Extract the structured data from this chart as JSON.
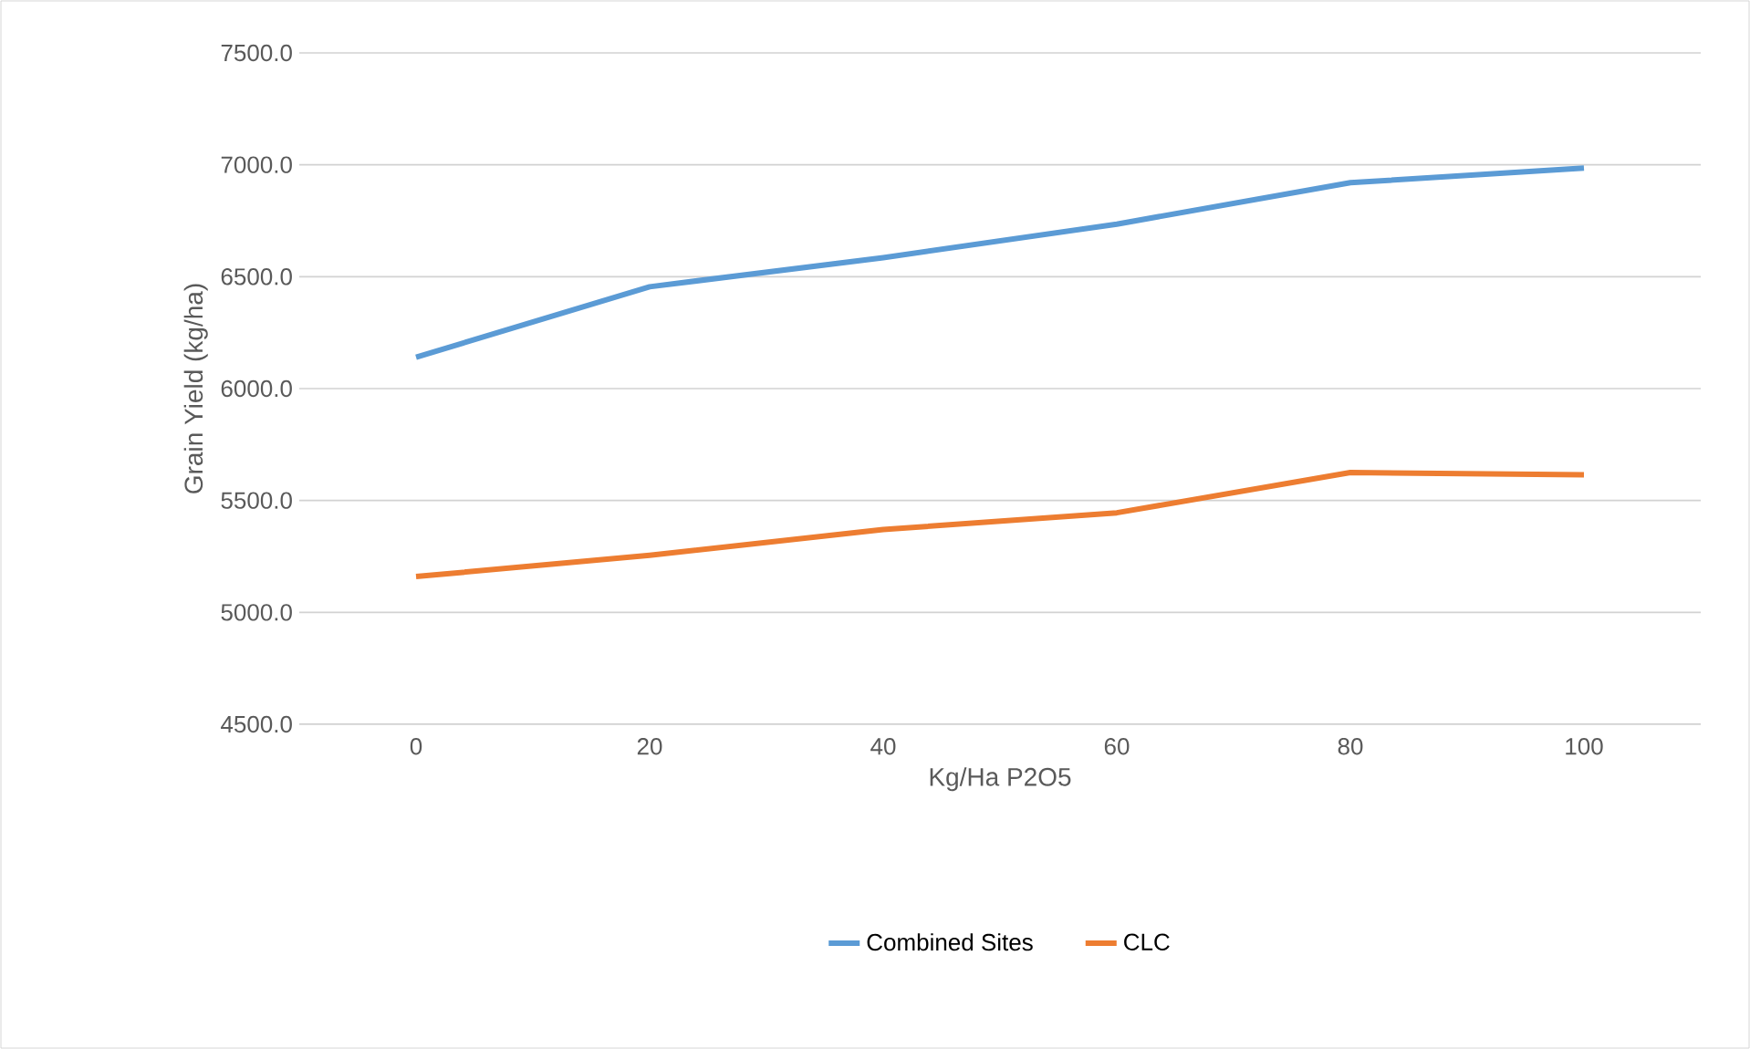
{
  "chart_data": {
    "type": "line",
    "xlabel": "Kg/Ha P2O5",
    "ylabel": "Grain Yield (kg/ha)",
    "categories": [
      "0",
      "20",
      "40",
      "60",
      "80",
      "100"
    ],
    "series": [
      {
        "name": "Combined Sites",
        "color": "#5b9bd5",
        "values": [
          6140,
          6455,
          6585,
          6735,
          6920,
          6985
        ]
      },
      {
        "name": "CLC",
        "color": "#ed7d31",
        "values": [
          5160,
          5255,
          5370,
          5445,
          5625,
          5615
        ]
      }
    ],
    "ylim": [
      4500,
      7500
    ],
    "yticks": [
      {
        "value": 4500,
        "label": "4500.0"
      },
      {
        "value": 5000,
        "label": "5000.0"
      },
      {
        "value": 5500,
        "label": "5500.0"
      },
      {
        "value": 6000,
        "label": "6000.0"
      },
      {
        "value": 6500,
        "label": "6500.0"
      },
      {
        "value": 7000,
        "label": "7000.0"
      },
      {
        "value": 7500,
        "label": "7500.0"
      }
    ],
    "grid": "y",
    "legend": "bottom",
    "marker": "none",
    "line_style": "solid"
  }
}
